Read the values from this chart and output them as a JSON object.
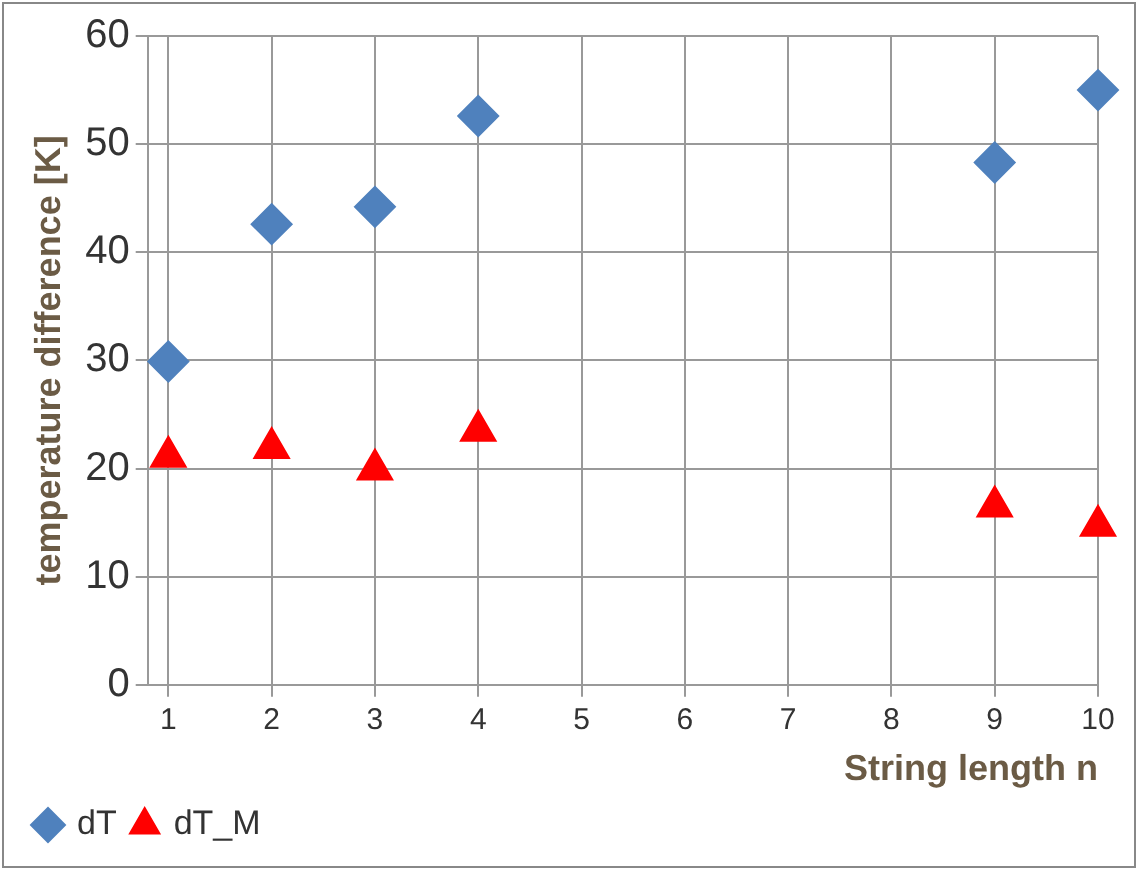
{
  "chart_data": {
    "type": "scatter",
    "xlabel": "String length n",
    "ylabel": "temperature difference [K]",
    "x": [
      1,
      2,
      3,
      4,
      9,
      10
    ],
    "series": [
      {
        "name": "dT",
        "color": "#4f81bd",
        "marker": "diamond",
        "values": [
          29.9,
          42.6,
          44.2,
          52.6,
          48.3,
          55.0
        ]
      },
      {
        "name": "dT_M",
        "color": "#ff0000",
        "marker": "triangle",
        "values": [
          21.1,
          21.9,
          19.9,
          23.5,
          16.5,
          14.7
        ]
      }
    ],
    "xlim": [
      0.8,
      10
    ],
    "xticks": [
      1,
      2,
      3,
      4,
      5,
      6,
      7,
      8,
      9,
      10
    ],
    "ylim": [
      0,
      60
    ],
    "yticks": [
      0,
      10,
      20,
      30,
      40,
      50,
      60
    ],
    "grid": true,
    "legend": "bottom left"
  }
}
